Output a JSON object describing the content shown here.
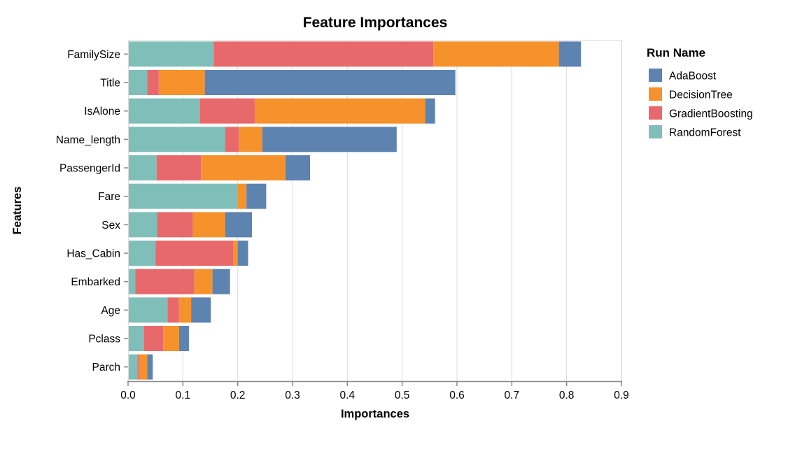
{
  "title": "Feature Importances",
  "x_axis": {
    "title": "Importances",
    "tick_labels": [
      "0.0",
      "0.1",
      "0.2",
      "0.3",
      "0.4",
      "0.5",
      "0.6",
      "0.7",
      "0.8",
      "0.9"
    ],
    "min": 0.0,
    "max": 0.9
  },
  "y_axis": {
    "title": "Features"
  },
  "legend": {
    "title": "Run Name",
    "entries": [
      {
        "label": "AdaBoost",
        "color": "#5d83b0"
      },
      {
        "label": "DecisionTree",
        "color": "#f6922b"
      },
      {
        "label": "GradientBoosting",
        "color": "#e8696b"
      },
      {
        "label": "RandomForest",
        "color": "#80bfb9"
      }
    ]
  },
  "style_colors": {
    "gridline": "#dddddd",
    "axis_line": "#888888",
    "view_border": "#dddddd",
    "text": "#000000",
    "background": "#ffffff"
  },
  "chart_data": {
    "type": "bar",
    "orientation": "horizontal",
    "stacked": true,
    "title": "Feature Importances",
    "xlabel": "Importances",
    "ylabel": "Features",
    "xlim": [
      0.0,
      0.9
    ],
    "grid": true,
    "legend_position": "right",
    "legend_title": "Run Name",
    "legend_order": [
      "AdaBoost",
      "DecisionTree",
      "GradientBoosting",
      "RandomForest"
    ],
    "stack_order_left_to_right": [
      "RandomForest",
      "GradientBoosting",
      "DecisionTree",
      "AdaBoost"
    ],
    "categories": [
      "FamilySize",
      "Title",
      "IsAlone",
      "Name_length",
      "PassengerId",
      "Fare",
      "Sex",
      "Has_Cabin",
      "Embarked",
      "Age",
      "Pclass",
      "Parch"
    ],
    "series": [
      {
        "name": "RandomForest",
        "color": "#80bfb9",
        "values": [
          0.156,
          0.035,
          0.131,
          0.177,
          0.052,
          0.2,
          0.053,
          0.05,
          0.013,
          0.072,
          0.029,
          0.017
        ]
      },
      {
        "name": "GradientBoosting",
        "color": "#e8696b",
        "values": [
          0.401,
          0.021,
          0.1,
          0.025,
          0.081,
          0.0,
          0.065,
          0.142,
          0.108,
          0.021,
          0.035,
          0.003
        ]
      },
      {
        "name": "DecisionTree",
        "color": "#f6922b",
        "values": [
          0.229,
          0.084,
          0.311,
          0.043,
          0.154,
          0.016,
          0.059,
          0.008,
          0.033,
          0.022,
          0.029,
          0.015
        ]
      },
      {
        "name": "AdaBoost",
        "color": "#5d83b0",
        "values": [
          0.04,
          0.457,
          0.018,
          0.245,
          0.045,
          0.036,
          0.049,
          0.019,
          0.032,
          0.036,
          0.018,
          0.01
        ]
      }
    ],
    "totals": [
      0.826,
      0.597,
      0.56,
      0.49,
      0.332,
      0.252,
      0.226,
      0.219,
      0.186,
      0.151,
      0.111,
      0.045
    ]
  }
}
